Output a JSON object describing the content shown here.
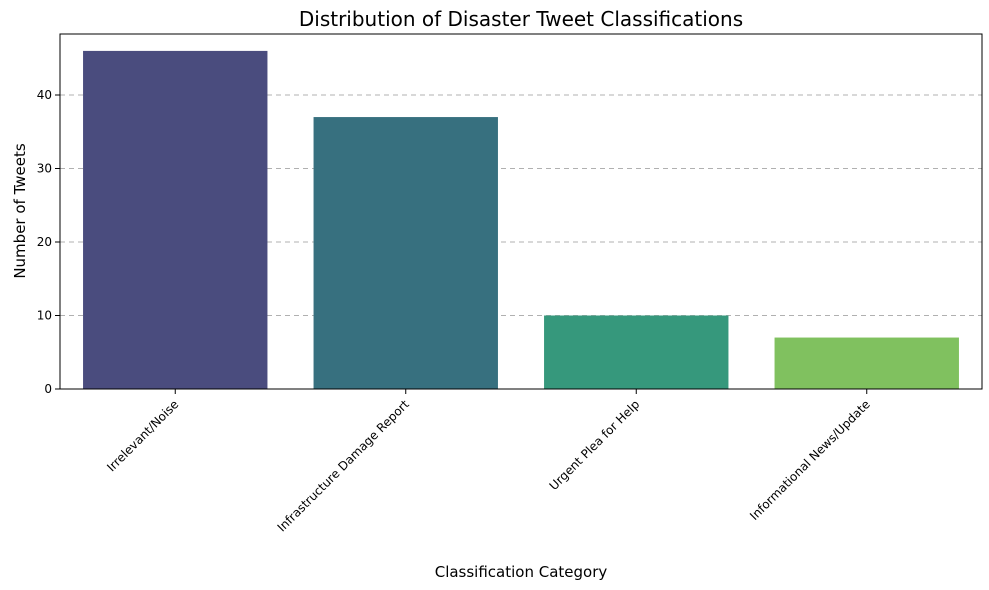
{
  "chart_data": {
    "type": "bar",
    "title": "Distribution of Disaster Tweet Classifications",
    "xlabel": "Classification Category",
    "ylabel": "Number of Tweets",
    "categories": [
      "Irrelevant/Noise",
      "Infrastructure Damage Report",
      "Urgent Plea for Help",
      "Informational News/Update"
    ],
    "values": [
      46,
      37,
      10,
      7
    ],
    "colors": [
      "#4a4c7e",
      "#37707f",
      "#36987c",
      "#80c15f"
    ],
    "ylim": [
      0,
      48.3
    ],
    "yticks": [
      0,
      10,
      20,
      30,
      40
    ],
    "grid": "y-dashed",
    "legend": "none"
  }
}
